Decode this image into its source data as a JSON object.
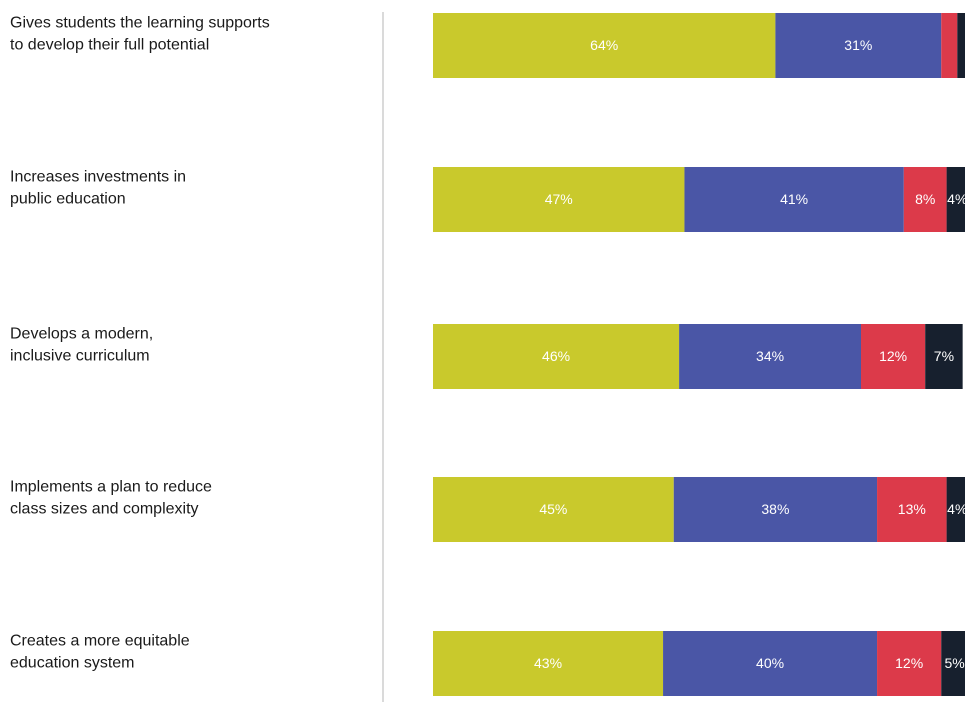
{
  "chart_data": {
    "type": "stacked-bar-horizontal",
    "categories": [
      [
        "Gives students the learning supports",
        "to develop their full potential"
      ],
      [
        "Increases investments in",
        "public education"
      ],
      [
        "Develops a modern,",
        "inclusive curriculum"
      ],
      [
        "Implements a plan to reduce",
        "class sizes and complexity"
      ],
      [
        "Creates a more equitable",
        "education system"
      ]
    ],
    "series": [
      {
        "color": "#c9c92c",
        "values": [
          64,
          47,
          46,
          45,
          43
        ],
        "value_labels": [
          "64%",
          "47%",
          "46%",
          "45%",
          "43%"
        ]
      },
      {
        "color": "#4a56a6",
        "values": [
          31,
          41,
          34,
          38,
          40
        ],
        "value_labels": [
          "31%",
          "41%",
          "34%",
          "38%",
          "40%"
        ]
      },
      {
        "color": "#dc3a4a",
        "values": [
          3,
          8,
          12,
          13,
          12
        ],
        "value_labels": [
          null,
          "8%",
          "12%",
          "13%",
          "12%"
        ]
      },
      {
        "color": "#17202e",
        "values": [
          2,
          4,
          7,
          4,
          5
        ],
        "value_labels": [
          null,
          "4%",
          "7%",
          "4%",
          "5%"
        ]
      }
    ]
  }
}
